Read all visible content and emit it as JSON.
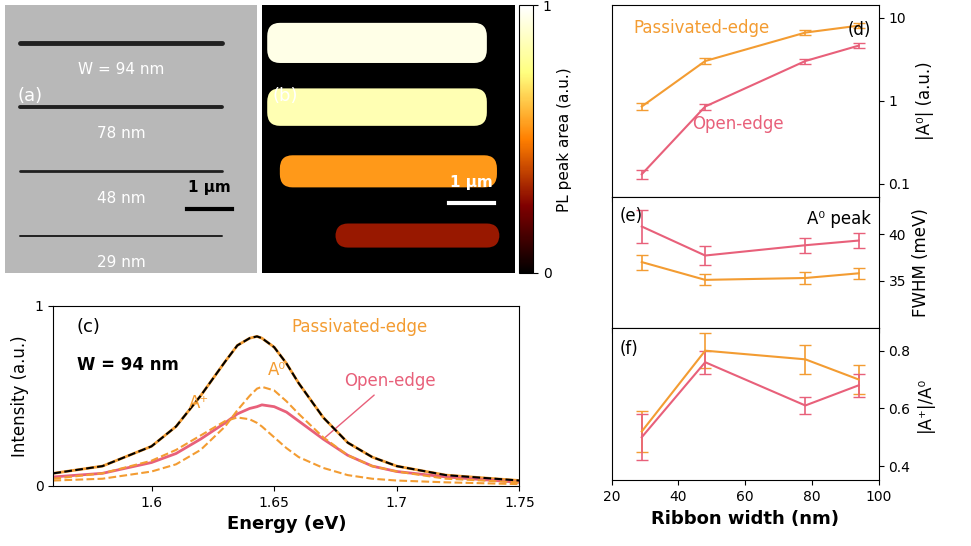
{
  "chart_data": [
    {
      "type": "image",
      "title": "(a)",
      "annotations": [
        "W = 94 nm",
        "78 nm",
        "48 nm",
        "29 nm"
      ],
      "scale_bar": "1 µm"
    },
    {
      "type": "heatmap",
      "title": "(b)",
      "values": [
        0.95,
        0.85,
        0.55,
        0.3
      ],
      "scale_bar": "1 µm",
      "colorbar": {
        "label": "PL peak area (a.u.)",
        "lim": [
          0,
          1
        ],
        "ticks": [
          0,
          1
        ]
      }
    },
    {
      "type": "line",
      "title": "(c)",
      "annotations": [
        "W = 94 nm"
      ],
      "x_label": "Energy (eV)",
      "y_label": "Intensity (a.u.)",
      "x": [
        1.56,
        1.58,
        1.6,
        1.61,
        1.62,
        1.63,
        1.635,
        1.64,
        1.643,
        1.645,
        1.65,
        1.655,
        1.66,
        1.67,
        1.68,
        1.69,
        1.7,
        1.72,
        1.75
      ],
      "xlim": [
        1.56,
        1.75
      ],
      "xticks": [
        1.6,
        1.65,
        1.7,
        1.75
      ],
      "ylim": [
        0,
        1
      ],
      "yticks": [
        0,
        1
      ],
      "series": [
        {
          "name": "Passivated-edge",
          "color": "#f39c32",
          "line_style": "solid",
          "values": [
            0.07,
            0.11,
            0.22,
            0.33,
            0.5,
            0.69,
            0.78,
            0.82,
            0.83,
            0.82,
            0.77,
            0.68,
            0.57,
            0.38,
            0.24,
            0.16,
            0.11,
            0.06,
            0.03
          ]
        },
        {
          "name": "Open-edge",
          "color": "#e8607a",
          "line_style": "solid",
          "values": [
            0.05,
            0.07,
            0.13,
            0.18,
            0.26,
            0.35,
            0.4,
            0.43,
            0.44,
            0.45,
            0.44,
            0.41,
            0.36,
            0.26,
            0.17,
            0.11,
            0.08,
            0.05,
            0.02
          ]
        },
        {
          "color": "#000000",
          "line_style": "dashed",
          "values": [
            0.07,
            0.11,
            0.22,
            0.33,
            0.5,
            0.69,
            0.78,
            0.82,
            0.83,
            0.82,
            0.77,
            0.68,
            0.57,
            0.38,
            0.24,
            0.16,
            0.11,
            0.06,
            0.03
          ]
        },
        {
          "name": "A⁺",
          "color": "#f39c32",
          "line_style": "dashed",
          "values": [
            0.04,
            0.07,
            0.14,
            0.2,
            0.28,
            0.36,
            0.38,
            0.37,
            0.35,
            0.33,
            0.27,
            0.21,
            0.16,
            0.1,
            0.06,
            0.04,
            0.03,
            0.02,
            0.01
          ]
        },
        {
          "name": "A⁰",
          "color": "#f39c32",
          "line_style": "dashed",
          "values": [
            0.03,
            0.04,
            0.08,
            0.12,
            0.2,
            0.33,
            0.42,
            0.5,
            0.54,
            0.55,
            0.53,
            0.47,
            0.4,
            0.27,
            0.17,
            0.11,
            0.08,
            0.04,
            0.02
          ]
        }
      ]
    },
    {
      "type": "line",
      "title": "(d)",
      "y_label": "|A⁰| (a.u.)",
      "log": "y",
      "tick_labels": "y",
      "x": [
        29,
        48,
        78,
        94
      ],
      "xlim": [
        20,
        100
      ],
      "xticks": [
        20,
        40,
        60,
        80,
        100
      ],
      "ylim": [
        0.07,
        14
      ],
      "yticks": [
        0.1,
        1,
        10
      ],
      "series": [
        {
          "name": "Passivated-edge",
          "color": "#f39c32",
          "values": [
            0.85,
            3.0,
            6.6,
            8.0
          ],
          "errors": [
            0.08,
            0.25,
            0.5,
            0.5
          ]
        },
        {
          "name": "Open-edge",
          "color": "#e8607a",
          "values": [
            0.13,
            0.85,
            3.0,
            4.6
          ],
          "errors": [
            0.015,
            0.07,
            0.2,
            0.3
          ]
        }
      ]
    },
    {
      "type": "line",
      "title": "(e)",
      "y_label": "FWHM (meV)",
      "annotations": [
        "A⁰ peak"
      ],
      "tick_labels": "y",
      "x": [
        29,
        48,
        78,
        94
      ],
      "xlim": [
        20,
        100
      ],
      "xticks": [
        20,
        40,
        60,
        80,
        100
      ],
      "ylim": [
        30,
        44
      ],
      "yticks": [
        35,
        40
      ],
      "series": [
        {
          "color": "#e8607a",
          "values": [
            40.8,
            37.7,
            38.8,
            39.3
          ],
          "errors": [
            1.8,
            1.0,
            0.8,
            0.8
          ]
        },
        {
          "color": "#f39c32",
          "values": [
            37.0,
            35.1,
            35.3,
            35.8
          ],
          "errors": [
            0.8,
            0.6,
            0.6,
            0.6
          ]
        }
      ]
    },
    {
      "type": "line",
      "title": "(f)",
      "x_label": "Ribbon width (nm)",
      "y_label": "|A⁺|/A⁰",
      "x": [
        29,
        48,
        78,
        94
      ],
      "xlim": [
        20,
        100
      ],
      "xticks": [
        20,
        40,
        60,
        80,
        100
      ],
      "ylim": [
        0.35,
        0.88
      ],
      "yticks": [
        0.4,
        0.6,
        0.8
      ],
      "series": [
        {
          "color": "#f39c32",
          "values": [
            0.52,
            0.8,
            0.77,
            0.7
          ],
          "errors": [
            0.07,
            0.06,
            0.05,
            0.05
          ]
        },
        {
          "color": "#e8607a",
          "values": [
            0.5,
            0.76,
            0.61,
            0.68
          ],
          "errors": [
            0.08,
            0.04,
            0.03,
            0.04
          ]
        }
      ]
    }
  ]
}
